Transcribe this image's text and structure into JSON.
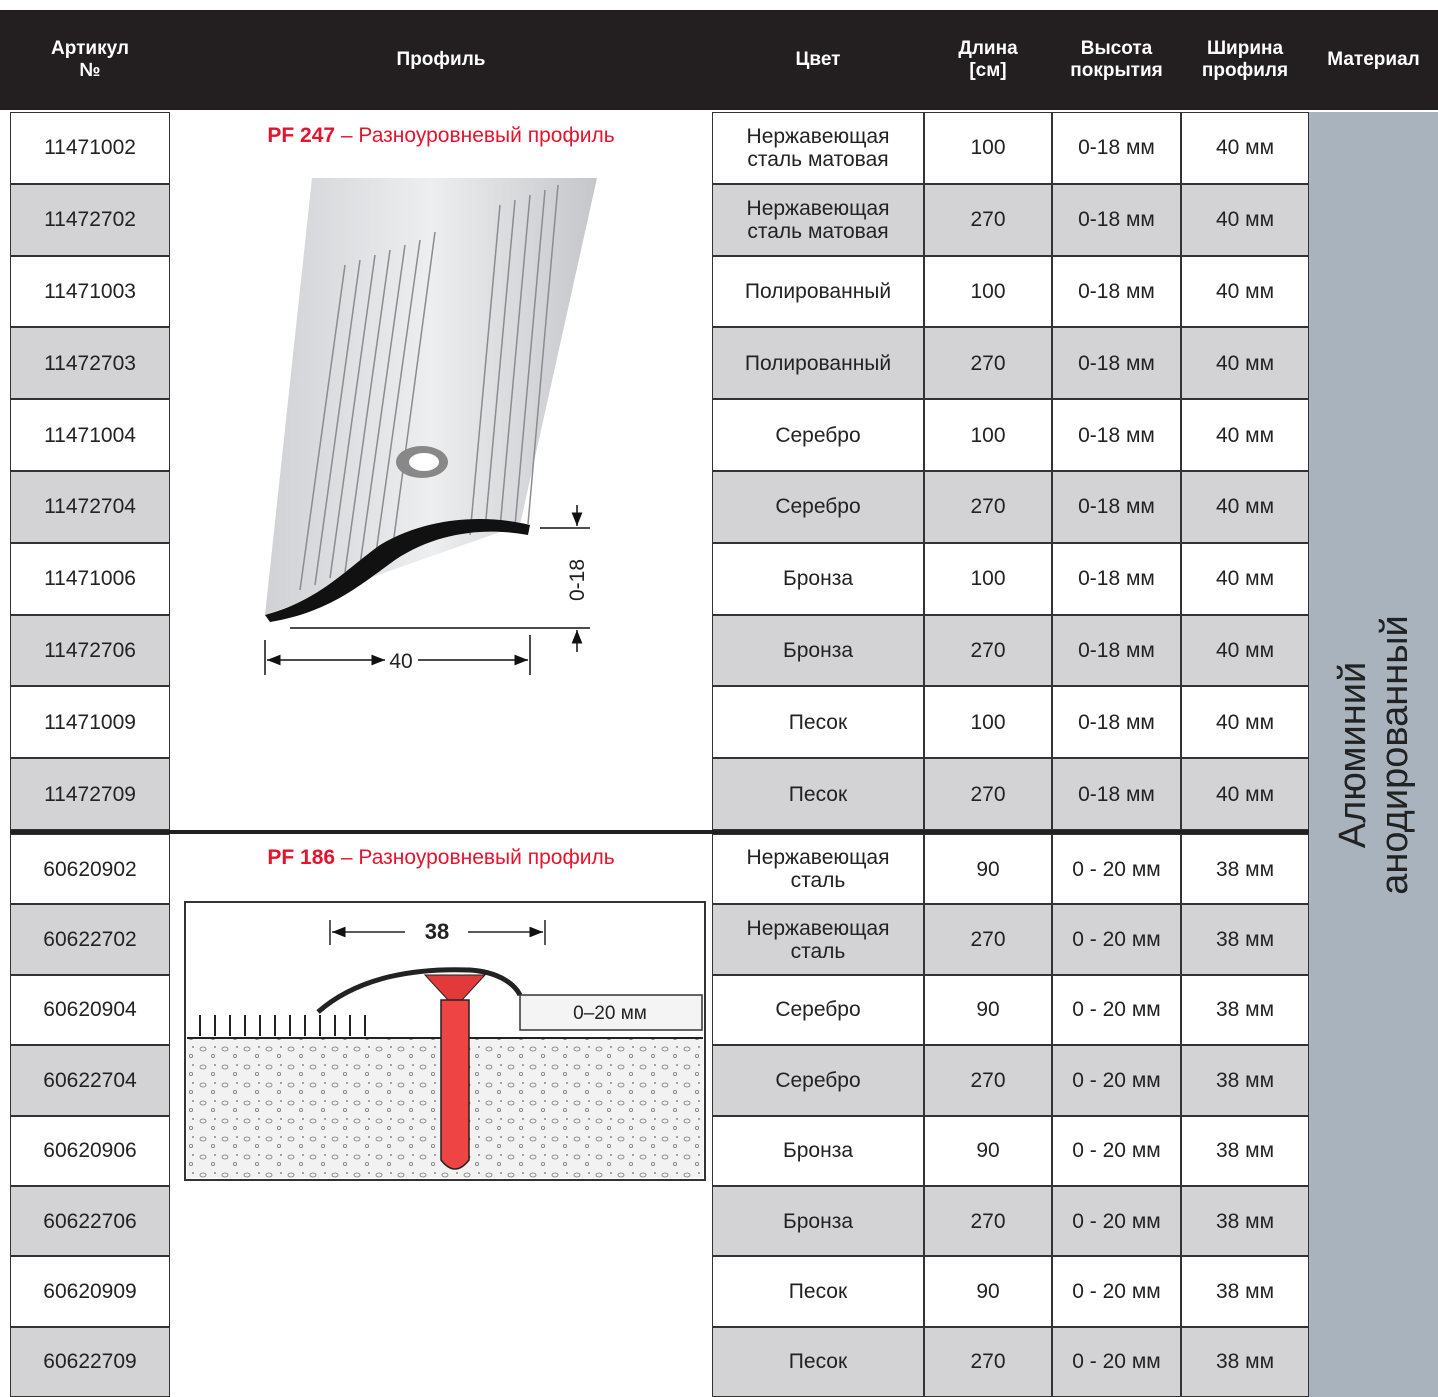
{
  "header": {
    "columns": [
      [
        "Артикул",
        "№"
      ],
      [
        "Профиль"
      ],
      [
        "Цвет"
      ],
      [
        "Длина",
        "[см]"
      ],
      [
        "Высота",
        "покрытия"
      ],
      [
        "Ширина",
        "профиля"
      ],
      [
        "Материал"
      ]
    ]
  },
  "material": [
    "Алюминий",
    "анодированный"
  ],
  "groups": [
    {
      "profile": {
        "code": "PF 247",
        "name": "– Разноуровневый профиль",
        "dims": [
          "40",
          "0-18"
        ]
      },
      "rows": [
        [
          "11471002",
          "Нержавеющая сталь матовая",
          100,
          "0-18 мм",
          "40 мм"
        ],
        [
          "11472702",
          "Нержавеющая сталь матовая",
          270,
          "0-18 мм",
          "40 мм"
        ],
        [
          "11471003",
          "Полированный",
          100,
          "0-18 мм",
          "40 мм"
        ],
        [
          "11472703",
          "Полированный",
          270,
          "0-18 мм",
          "40 мм"
        ],
        [
          "11471004",
          "Серебро",
          100,
          "0-18 мм",
          "40 мм"
        ],
        [
          "11472704",
          "Серебро",
          270,
          "0-18 мм",
          "40 мм"
        ],
        [
          "11471006",
          "Бронза",
          100,
          "0-18 мм",
          "40 мм"
        ],
        [
          "11472706",
          "Бронза",
          270,
          "0-18 мм",
          "40 мм"
        ],
        [
          "11471009",
          "Песок",
          100,
          "0-18 мм",
          "40 мм"
        ],
        [
          "11472709",
          "Песок",
          270,
          "0-18 мм",
          "40 мм"
        ]
      ]
    },
    {
      "profile": {
        "code": "PF 186",
        "name": "– Разноуровневый профиль",
        "dims": [
          "38",
          "0–20 мм"
        ]
      },
      "rows": [
        [
          "60620902",
          "Нержавеющая сталь",
          90,
          "0 - 20 мм",
          "38 мм"
        ],
        [
          "60622702",
          "Нержавеющая сталь",
          270,
          "0 - 20 мм",
          "38 мм"
        ],
        [
          "60620904",
          "Серебро",
          90,
          "0 - 20 мм",
          "38 мм"
        ],
        [
          "60622704",
          "Серебро",
          270,
          "0 - 20 мм",
          "38 мм"
        ],
        [
          "60620906",
          "Бронза",
          90,
          "0 - 20 мм",
          "38 мм"
        ],
        [
          "60622706",
          "Бронза",
          270,
          "0 - 20 мм",
          "38 мм"
        ],
        [
          "60620909",
          "Песок",
          90,
          "0 - 20 мм",
          "38 мм"
        ],
        [
          "60622709",
          "Песок",
          270,
          "0 - 20 мм",
          "38 мм"
        ]
      ]
    }
  ]
}
